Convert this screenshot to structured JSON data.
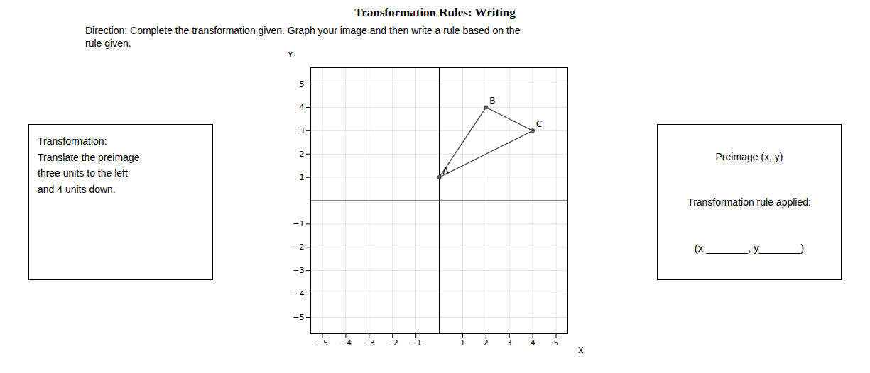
{
  "chart_data": {
    "type": "polygon",
    "title": "Transformation Rules: Writing",
    "subtitle": "Direction: Complete the transformation given.  Graph your image and then write a rule based on the\nrule given.",
    "annotations": [
      "Transformation:\nTranslate the preimage\nthree units to the left\nand 4 units down.",
      "Preimage (x, y)",
      "Transformation rule applied:",
      "(x _______, y_______)"
    ],
    "xlabel": "X",
    "ylabel": "Y",
    "x": [
      0,
      2,
      4
    ],
    "values": [
      1,
      4,
      3
    ],
    "labels": [
      "A",
      "B",
      "C"
    ],
    "color": "#555555",
    "marker": "circle",
    "xlim": [
      -5.5,
      5.5
    ],
    "ylim": [
      -5.7,
      5.7
    ],
    "xticks": [
      -5,
      -4,
      -3,
      -2,
      -1,
      1,
      2,
      3,
      4,
      5
    ],
    "yticks": [
      -5,
      -4,
      -3,
      -2,
      -1,
      1,
      2,
      3,
      4,
      5
    ],
    "grid": true
  }
}
